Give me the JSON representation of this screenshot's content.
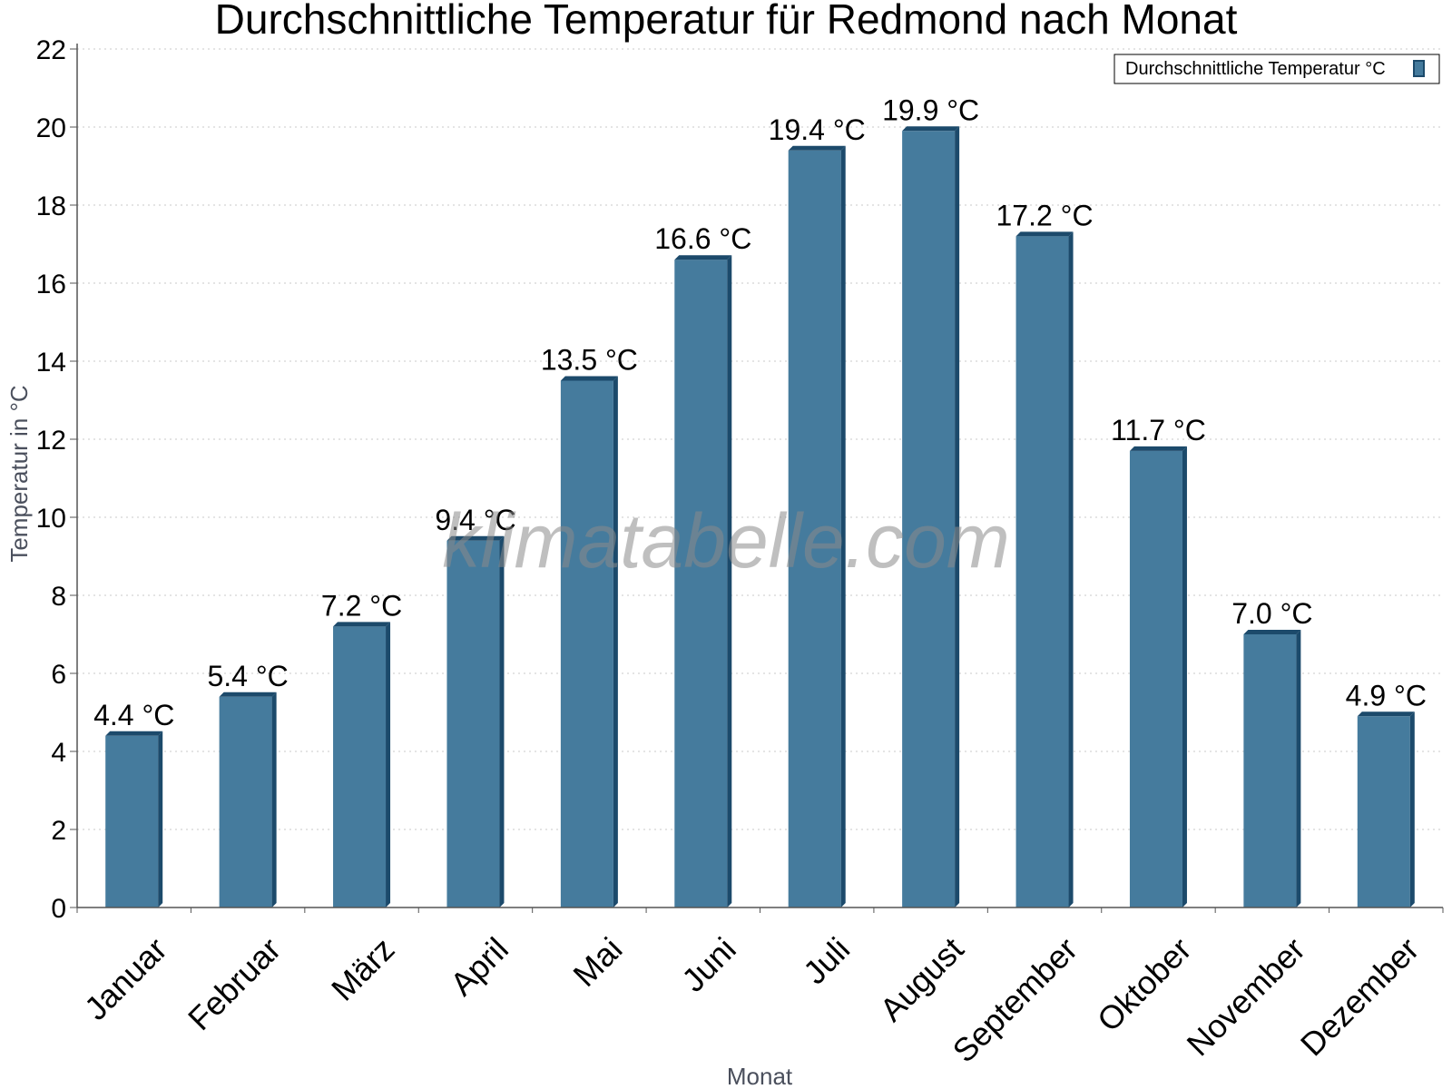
{
  "chart_data": {
    "type": "bar",
    "title": "Durchschnittliche Temperatur für Redmond nach Monat",
    "xlabel": "Monat",
    "ylabel": "Temperatur in °C",
    "categories": [
      "Januar",
      "Februar",
      "März",
      "April",
      "Mai",
      "Juni",
      "Juli",
      "August",
      "September",
      "Oktober",
      "November",
      "Dezember"
    ],
    "series": [
      {
        "name": "Durchschnittliche Temperatur °C",
        "values": [
          4.4,
          5.4,
          7.2,
          9.4,
          13.5,
          16.6,
          19.4,
          19.9,
          17.2,
          11.7,
          7.0,
          4.9
        ],
        "labels": [
          "4.4 °C",
          "5.4 °C",
          "7.2 °C",
          "9.4 °C",
          "13.5 °C",
          "16.6 °C",
          "19.4 °C",
          "19.9 °C",
          "17.2 °C",
          "11.7 °C",
          "7.0 °C",
          "4.9 °C"
        ]
      }
    ],
    "yticks": [
      "0",
      "2",
      "4",
      "6",
      "8",
      "10",
      "12",
      "14",
      "16",
      "18",
      "20",
      "22"
    ],
    "ylim": [
      0,
      22
    ],
    "grid": "horizontal dotted",
    "legend_position": "top-right",
    "colors": {
      "bar_front": "#457b9d",
      "bar_side": "#1c4a6b",
      "bar_top": "#1c4a6b",
      "grid": "#c8c8c8",
      "axis": "#555555"
    }
  },
  "watermark": "klimatabelle.com"
}
